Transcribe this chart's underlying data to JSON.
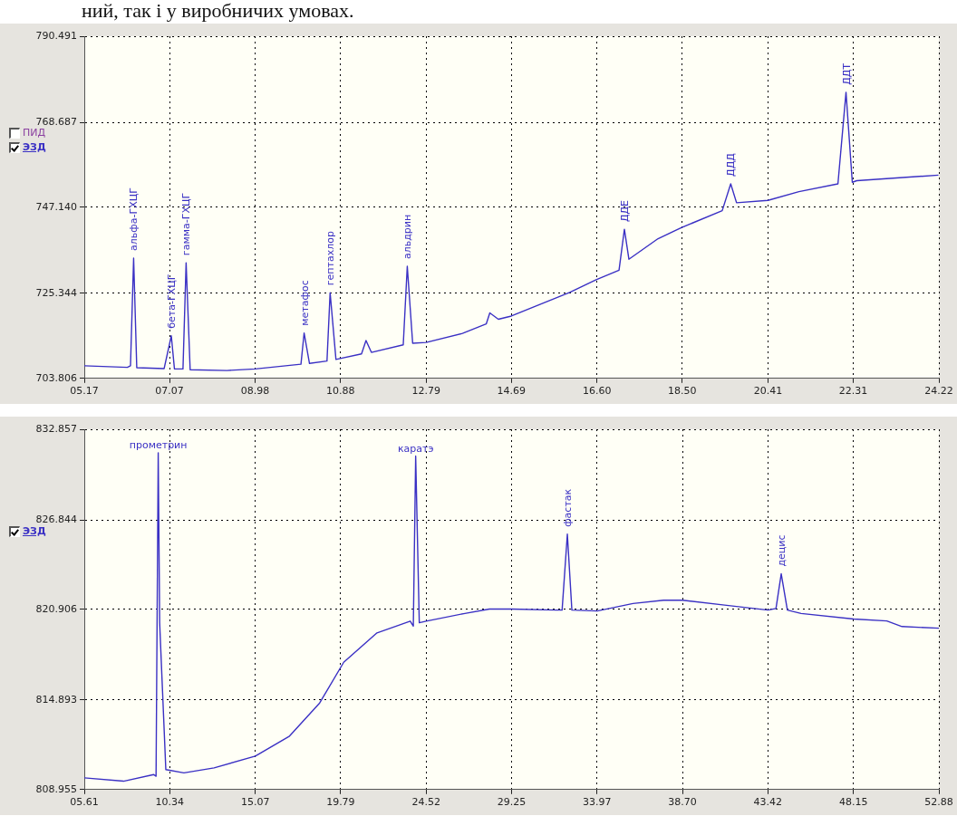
{
  "chart_data": [
    {
      "type": "line",
      "xlim": [
        5.17,
        24.22
      ],
      "xticks": [
        {
          "value": 5.17,
          "label": "05.17"
        },
        {
          "value": 7.07,
          "label": "07.07"
        },
        {
          "value": 8.98,
          "label": "08.98"
        },
        {
          "value": 10.88,
          "label": "10.88"
        },
        {
          "value": 12.79,
          "label": "12.79"
        },
        {
          "value": 14.69,
          "label": "14.69"
        },
        {
          "value": 16.6,
          "label": "16.60"
        },
        {
          "value": 18.5,
          "label": "18.50"
        },
        {
          "value": 20.41,
          "label": "20.41"
        },
        {
          "value": 22.31,
          "label": "22.31"
        },
        {
          "value": 24.22,
          "label": "24.22"
        }
      ],
      "ylim": [
        703.806,
        790.491
      ],
      "yticks": [
        {
          "value": 703.806,
          "label": "703.806"
        },
        {
          "value": 725.344,
          "label": "725.344"
        },
        {
          "value": 747.14,
          "label": "747.140"
        },
        {
          "value": 768.687,
          "label": "768.687"
        },
        {
          "value": 790.491,
          "label": "790.491"
        }
      ],
      "grid": true,
      "legend": "left",
      "series": [
        {
          "name": "ЭЗД",
          "color": "#3a30c4",
          "x": [
            5.17,
            6.13,
            6.2,
            6.27,
            6.34,
            6.95,
            7.11,
            7.18,
            7.37,
            7.44,
            7.53,
            8.35,
            8.98,
            10.0,
            10.07,
            10.19,
            10.58,
            10.65,
            10.78,
            11.35,
            11.45,
            11.57,
            12.28,
            12.37,
            12.49,
            12.79,
            13.6,
            14.13,
            14.21,
            14.4,
            14.69,
            15.99,
            16.58,
            17.09,
            17.21,
            17.31,
            17.96,
            18.48,
            19.39,
            19.58,
            19.71,
            20.41,
            21.1,
            21.97,
            22.15,
            22.29,
            22.39,
            24.21
          ],
          "values": [
            707.0,
            706.6,
            707.0,
            734.3,
            706.5,
            706.3,
            714.6,
            706.2,
            706.2,
            733.1,
            706.0,
            705.8,
            706.2,
            707.4,
            715.3,
            707.6,
            708.2,
            725.5,
            708.6,
            710.0,
            713.4,
            710.4,
            712.3,
            732.2,
            712.7,
            712.9,
            715.2,
            717.6,
            720.4,
            718.8,
            719.6,
            725.6,
            728.8,
            731.2,
            741.6,
            734.0,
            739.2,
            742.0,
            746.3,
            753.1,
            748.3,
            748.9,
            751.1,
            753.1,
            776.3,
            753.5,
            753.9,
            755.3
          ]
        }
      ],
      "annotations": [
        "ний, так і у виробничих умовах.",
        "ПИД",
        {
          "text": "альфа-ГХЦГ",
          "x": 6.27,
          "y": 734.3
        },
        {
          "text": "бета-ГХЦГ",
          "x": 7.11,
          "y": 714.6
        },
        {
          "text": "гамма-ГХЦГ",
          "x": 7.44,
          "y": 733.1
        },
        {
          "text": "метафос",
          "x": 10.07,
          "y": 715.3
        },
        {
          "text": "гептахлор",
          "x": 10.65,
          "y": 725.5
        },
        {
          "text": "альдрин",
          "x": 12.37,
          "y": 732.2
        },
        {
          "text": "ДДЕ",
          "x": 17.21,
          "y": 741.6
        },
        {
          "text": "ДДД",
          "x": 19.58,
          "y": 753.1
        },
        {
          "text": "ДДТ",
          "x": 22.15,
          "y": 776.3
        }
      ]
    },
    {
      "type": "line",
      "xlim": [
        5.61,
        52.88
      ],
      "xticks": [
        {
          "value": 5.61,
          "label": "05.61"
        },
        {
          "value": 10.34,
          "label": "10.34"
        },
        {
          "value": 15.07,
          "label": "15.07"
        },
        {
          "value": 19.79,
          "label": "19.79"
        },
        {
          "value": 24.52,
          "label": "24.52"
        },
        {
          "value": 29.25,
          "label": "29.25"
        },
        {
          "value": 33.97,
          "label": "33.97"
        },
        {
          "value": 38.7,
          "label": "38.70"
        },
        {
          "value": 43.42,
          "label": "43.42"
        },
        {
          "value": 48.15,
          "label": "48.15"
        },
        {
          "value": 52.88,
          "label": "52.88"
        }
      ],
      "ylim": [
        808.955,
        832.857
      ],
      "yticks": [
        {
          "value": 808.955,
          "label": "808.955"
        },
        {
          "value": 814.893,
          "label": "814.893"
        },
        {
          "value": 820.906,
          "label": "820.906"
        },
        {
          "value": 826.844,
          "label": "826.844"
        },
        {
          "value": 832.857,
          "label": "832.857"
        }
      ],
      "grid": true,
      "legend": "left",
      "series": [
        {
          "name": "ЭЗД",
          "color": "#3a30c4",
          "x": [
            5.61,
            7.78,
            9.45,
            9.58,
            9.7,
            9.78,
            10.12,
            11.12,
            12.79,
            15.07,
            16.96,
            18.63,
            19.96,
            21.8,
            23.64,
            23.81,
            23.94,
            24.14,
            24.52,
            26.66,
            28.02,
            29.25,
            31.73,
            32.04,
            32.33,
            32.58,
            33.98,
            35.96,
            37.65,
            38.7,
            41.03,
            43.43,
            43.87,
            44.16,
            44.5,
            45.26,
            48.17,
            50.0,
            50.84,
            52.88
          ],
          "values": [
            809.73,
            809.51,
            809.95,
            809.84,
            831.3,
            820.0,
            810.28,
            810.06,
            810.39,
            811.17,
            812.5,
            814.7,
            817.4,
            819.35,
            820.13,
            819.8,
            831.08,
            820.02,
            820.13,
            820.64,
            820.93,
            820.93,
            820.86,
            820.86,
            825.9,
            820.86,
            820.8,
            821.3,
            821.52,
            821.52,
            821.19,
            820.86,
            820.97,
            823.27,
            820.86,
            820.64,
            820.27,
            820.14,
            819.77,
            819.66
          ]
        }
      ],
      "annotations": [
        {
          "text": "прометрин",
          "x": 9.7,
          "y": 831.3
        },
        {
          "text": "каратэ",
          "x": 23.94,
          "y": 831.08
        },
        {
          "text": "фастак",
          "x": 32.33,
          "y": 825.9
        },
        {
          "text": "децис",
          "x": 44.16,
          "y": 823.27
        }
      ]
    }
  ]
}
